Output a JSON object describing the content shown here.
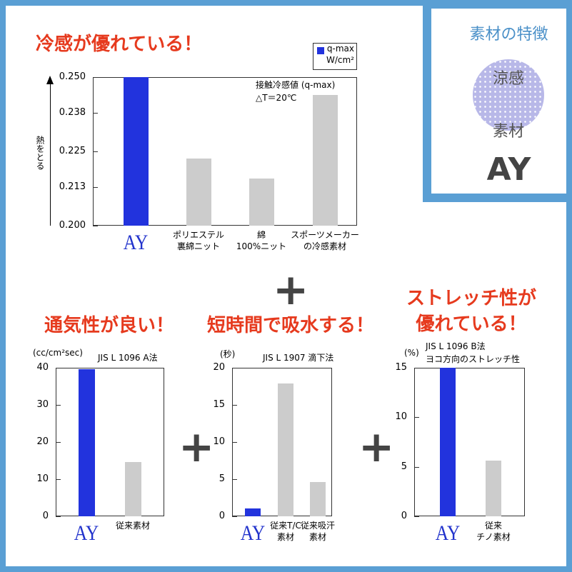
{
  "badge": {
    "title": "素材の特徴",
    "circle_lines": [
      "涼感",
      "素材"
    ],
    "name": "AY"
  },
  "chart_data": [
    {
      "type": "bar",
      "title": "冷感が優れている！",
      "y_label": "熱をとる",
      "annotation": "接触冷感値 (q-max)\n△T＝20℃",
      "legend": {
        "label": "q-max\nW/cm²",
        "color": "#2233dd"
      },
      "categories": [
        "AY",
        "ポリエステル\n裏綿ニット",
        "綿\n100%ニット",
        "スポーツメーカー\nの冷感素材"
      ],
      "values": [
        0.25,
        0.2226,
        0.2159,
        0.244
      ],
      "colors": [
        "#2233dd",
        "#cccccc",
        "#cccccc",
        "#cccccc"
      ],
      "ylim": [
        0.2,
        0.25
      ],
      "yticks": [
        {
          "value": 0.2,
          "label": "0.200"
        },
        0.213,
        0.225,
        0.238,
        {
          "value": 0.25,
          "label": "0.250"
        }
      ]
    },
    {
      "type": "bar",
      "title": "通気性が良い！",
      "unit_label": "(cc/cm²sec)",
      "annotation": "JIS L 1096  A法",
      "categories": [
        "AY",
        "従来素材"
      ],
      "values": [
        39.6,
        14.7
      ],
      "colors": [
        "#2233dd",
        "#cccccc"
      ],
      "ylim": [
        0,
        40
      ],
      "yticks": [
        0,
        10,
        20,
        30,
        40
      ]
    },
    {
      "type": "bar",
      "title": "短時間で吸水する！",
      "unit_label": "(秒)",
      "annotation": "JIS L 1907  滴下法",
      "categories": [
        "AY",
        "従来T/C\n素材",
        "従来吸汗\n素材"
      ],
      "values": [
        1.1,
        17.9,
        4.6
      ],
      "colors": [
        "#2233dd",
        "#cccccc",
        "#cccccc"
      ],
      "ylim": [
        0,
        20
      ],
      "yticks": [
        0,
        5,
        10,
        15,
        20
      ]
    },
    {
      "type": "bar",
      "title": "ストレッチ性が\n優れている！",
      "unit_label": "(%)",
      "annotation": "JIS L 1096  B法\nヨコ方向のストレッチ性",
      "categories": [
        "AY",
        "従来\nチノ素材"
      ],
      "values": [
        15,
        5.6
      ],
      "colors": [
        "#2233dd",
        "#cccccc"
      ],
      "ylim": [
        0,
        15
      ],
      "yticks": [
        0,
        5,
        10,
        15
      ]
    }
  ]
}
